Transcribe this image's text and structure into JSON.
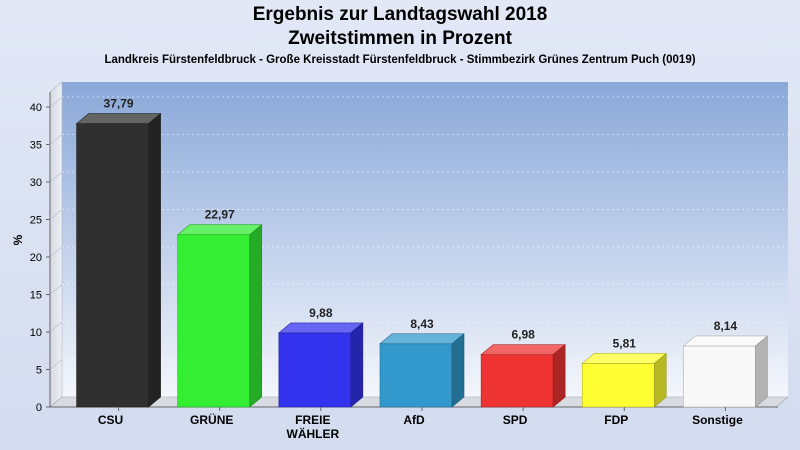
{
  "header": {
    "title_line1": "Ergebnis zur Landtagswahl 2018",
    "title_line2": "Zweitstimmen in Prozent",
    "subtitle": "Landkreis Fürstenfeldbruck - Große Kreisstadt Fürstenfeldbruck - Stimmbezirk Grünes Zentrum Puch (0019)"
  },
  "chart_data": {
    "type": "bar",
    "title": "Ergebnis zur Landtagswahl 2018 Zweitstimmen in Prozent",
    "subtitle": "Landkreis Fürstenfeldbruck - Große Kreisstadt Fürstenfeldbruck - Stimmbezirk Grünes Zentrum Puch (0019)",
    "categories": [
      "CSU",
      "GRÜNE",
      "FREIE WÄHLER",
      "AfD",
      "SPD",
      "FDP",
      "Sonstige"
    ],
    "category_lines": [
      [
        "CSU"
      ],
      [
        "GRÜNE"
      ],
      [
        "FREIE",
        "WÄHLER"
      ],
      [
        "AfD"
      ],
      [
        "SPD"
      ],
      [
        "FDP"
      ],
      [
        "Sonstige"
      ]
    ],
    "values": [
      37.79,
      22.97,
      9.88,
      8.43,
      6.98,
      5.81,
      8.14
    ],
    "value_labels": [
      "37,79",
      "22,97",
      "9,88",
      "8,43",
      "6,98",
      "5,81",
      "8,14"
    ],
    "colors": [
      "#303030",
      "#33ee33",
      "#3333ee",
      "#3399cc",
      "#ee3333",
      "#ffff33",
      "#f8f8f8"
    ],
    "xlabel": "",
    "ylabel": "%",
    "ylim": [
      0,
      42
    ],
    "yticks": [
      0,
      5,
      10,
      15,
      20,
      25,
      30,
      35,
      40
    ],
    "grid": true,
    "legend": "none"
  }
}
